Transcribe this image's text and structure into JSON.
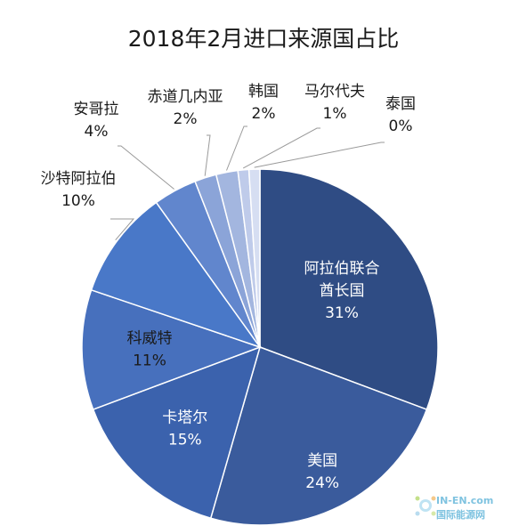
{
  "chart_data": {
    "type": "pie",
    "title": "2018年2月进口来源国占比",
    "slices": [
      {
        "name": "阿拉伯联合酋长国",
        "label_lines": [
          "阿拉伯联合",
          "酋长国"
        ],
        "value": 31,
        "value_label": "31%",
        "color": "#2f4c84",
        "label_color": "#ffffff"
      },
      {
        "name": "美国",
        "label_lines": [
          "美国"
        ],
        "value": 24,
        "value_label": "24%",
        "color": "#3a5b9c",
        "label_color": "#ffffff"
      },
      {
        "name": "卡塔尔",
        "label_lines": [
          "卡塔尔"
        ],
        "value": 15,
        "value_label": "15%",
        "color": "#3b62ad",
        "label_color": "#ffffff"
      },
      {
        "name": "科威特",
        "label_lines": [
          "科威特"
        ],
        "value": 11,
        "value_label": "11%",
        "color": "#4770bd",
        "label_color": "#1a1a1a"
      },
      {
        "name": "沙特阿拉伯",
        "label_lines": [
          "沙特阿拉伯"
        ],
        "value": 10,
        "value_label": "10%",
        "color": "#4978c8",
        "label_color": "#1a1a1a"
      },
      {
        "name": "安哥拉",
        "label_lines": [
          "安哥拉"
        ],
        "value": 4,
        "value_label": "4%",
        "color": "#6186cd",
        "label_color": "#1a1a1a"
      },
      {
        "name": "赤道几内亚",
        "label_lines": [
          "赤道几内亚"
        ],
        "value": 2,
        "value_label": "2%",
        "color": "#8ba4d8",
        "label_color": "#1a1a1a"
      },
      {
        "name": "韩国",
        "label_lines": [
          "韩国"
        ],
        "value": 2,
        "value_label": "2%",
        "color": "#a3b6df",
        "label_color": "#1a1a1a"
      },
      {
        "name": "马尔代夫",
        "label_lines": [
          "马尔代夫"
        ],
        "value": 1,
        "value_label": "1%",
        "color": "#bfcbea",
        "label_color": "#1a1a1a"
      },
      {
        "name": "泰国",
        "label_lines": [
          "泰国"
        ],
        "value": 0,
        "value_label": "0%",
        "color": "#d6def2",
        "label_color": "#1a1a1a"
      }
    ],
    "legend": "none"
  },
  "watermark": {
    "line1": "IN-EN.com",
    "line2": "国际能源网",
    "color": "#7fc3e0"
  }
}
